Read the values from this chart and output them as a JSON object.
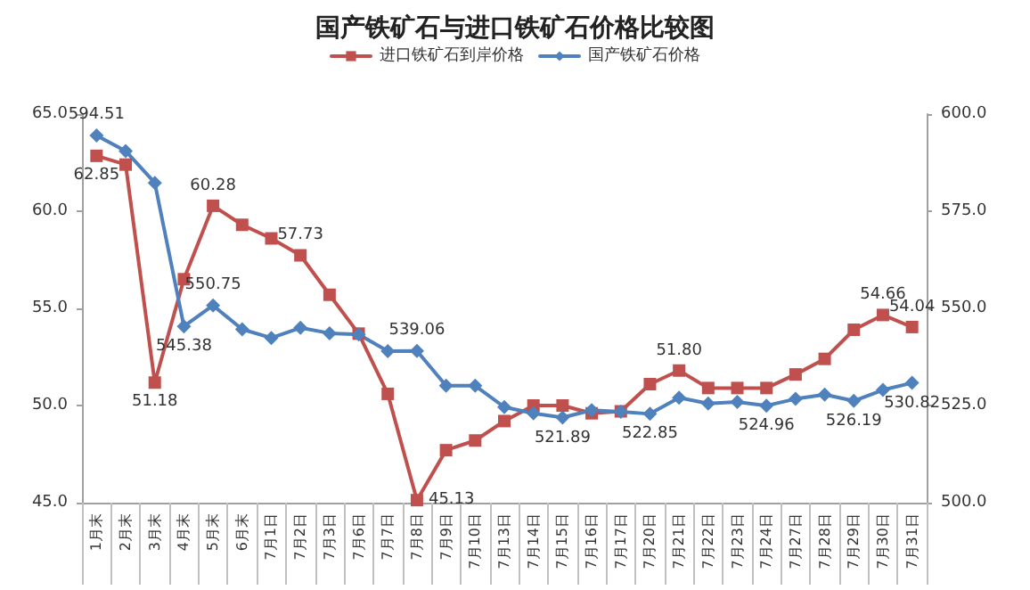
{
  "chart_data": {
    "type": "line",
    "title": "国产铁矿石与进口铁矿石价格比较图",
    "categories": [
      "1月末",
      "2月末",
      "3月末",
      "4月末",
      "5月末",
      "6月末",
      "7月1日",
      "7月2日",
      "7月3日",
      "7月6日",
      "7月7日",
      "7月8日",
      "7月9日",
      "7月10日",
      "7月13日",
      "7月14日",
      "7月15日",
      "7月16日",
      "7月17日",
      "7月20日",
      "7月21日",
      "7月22日",
      "7月23日",
      "7月24日",
      "7月27日",
      "7月28日",
      "7月29日",
      "7月30日",
      "7月31日"
    ],
    "series": [
      {
        "name": "进口铁矿石到岸价格",
        "color": "#c0504d",
        "marker": "square",
        "values": [
          62.85,
          62.4,
          51.18,
          56.5,
          60.28,
          59.3,
          58.6,
          57.73,
          55.7,
          53.7,
          50.6,
          45.13,
          47.7,
          48.2,
          49.2,
          50.0,
          50.0,
          49.6,
          49.7,
          51.1,
          51.8,
          50.9,
          50.9,
          50.9,
          51.6,
          52.4,
          53.9,
          54.66,
          54.04
        ],
        "value_labels": [
          "62.85",
          null,
          "51.18",
          null,
          "60.28",
          null,
          null,
          "57.73",
          null,
          null,
          null,
          "45.13",
          null,
          null,
          null,
          null,
          null,
          null,
          null,
          null,
          "51.80",
          null,
          null,
          null,
          null,
          null,
          null,
          "54.66",
          "54.04"
        ]
      },
      {
        "name": "国产铁矿石价格",
        "color": "#4f81bd",
        "marker": "diamond",
        "axis": "y2",
        "values": [
          594.51,
          590.5,
          582.3,
          545.38,
          550.75,
          544.6,
          542.4,
          545.0,
          543.6,
          543.3,
          539.0,
          539.06,
          530.1,
          530.1,
          524.6,
          523.0,
          521.89,
          523.8,
          523.4,
          522.85,
          527.0,
          525.5,
          525.9,
          524.96,
          526.7,
          527.8,
          526.19,
          529.0,
          530.82
        ],
        "value_labels": [
          "594.51",
          null,
          null,
          "545.38",
          "550.75",
          null,
          null,
          null,
          null,
          null,
          null,
          "539.06",
          null,
          null,
          null,
          null,
          "521.89",
          null,
          null,
          "522.85",
          null,
          null,
          null,
          "524.96",
          null,
          null,
          "526.19",
          null,
          "530.82"
        ]
      }
    ],
    "ylim": [
      45,
      65
    ],
    "yticks": [
      {
        "value": 45,
        "label": "45.0"
      },
      {
        "value": 50,
        "label": "50.0"
      },
      {
        "value": 55,
        "label": "55.0"
      },
      {
        "value": 60,
        "label": "60.0"
      },
      {
        "value": 65,
        "label": "65.0"
      }
    ],
    "y2lim": [
      500,
      600
    ],
    "y2ticks": [
      {
        "value": 500,
        "label": "500.0"
      },
      {
        "value": 525,
        "label": "525.0"
      },
      {
        "value": 550,
        "label": "550.0"
      },
      {
        "value": 575,
        "label": "575.0"
      },
      {
        "value": 600,
        "label": "600.0"
      }
    ],
    "grid": false,
    "legend": "top",
    "line_style": "solid"
  }
}
